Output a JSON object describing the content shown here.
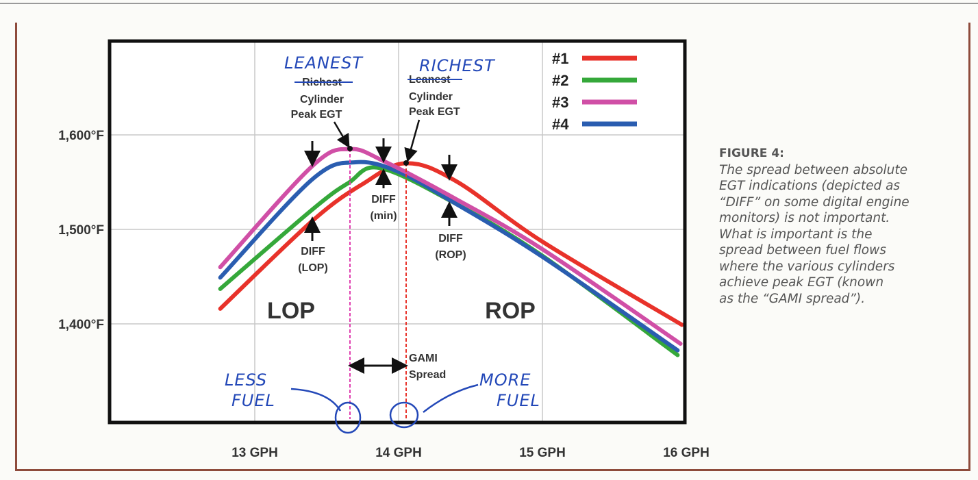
{
  "chart_data": {
    "type": "line",
    "xlim": [
      12,
      16
    ],
    "ylim": [
      1296,
      1699
    ],
    "grid": true,
    "legend_placement": "top-right",
    "x_ticks": [
      {
        "v": 13,
        "label": "13 GPH"
      },
      {
        "v": 14,
        "label": "14 GPH"
      },
      {
        "v": 15,
        "label": "15 GPH"
      },
      {
        "v": 16,
        "label": "16 GPH"
      }
    ],
    "y_ticks": [
      {
        "v": 1600,
        "label": "1,600°F"
      },
      {
        "v": 1500,
        "label": "1,500°F"
      },
      {
        "v": 1400,
        "label": "1,400°F"
      }
    ],
    "series": [
      {
        "name": "#1",
        "color": "#e8322a",
        "points": [
          [
            12.76,
            1416
          ],
          [
            13.4,
            1509
          ],
          [
            13.75,
            1548
          ],
          [
            14.05,
            1570
          ],
          [
            14.4,
            1551
          ],
          [
            15,
            1487
          ],
          [
            15.97,
            1399
          ]
        ]
      },
      {
        "name": "#2",
        "color": "#35a83a",
        "points": [
          [
            12.76,
            1437
          ],
          [
            13.4,
            1521
          ],
          [
            13.65,
            1549
          ],
          [
            13.87,
            1565
          ],
          [
            14.4,
            1527
          ],
          [
            15,
            1472
          ],
          [
            15.94,
            1367
          ]
        ]
      },
      {
        "name": "#3",
        "color": "#d04fa6",
        "points": [
          [
            12.76,
            1460
          ],
          [
            13.4,
            1567
          ],
          [
            13.66,
            1585
          ],
          [
            13.9,
            1572
          ],
          [
            14.4,
            1532
          ],
          [
            15,
            1479
          ],
          [
            15.96,
            1379
          ]
        ]
      },
      {
        "name": "#4",
        "color": "#2a5db0",
        "points": [
          [
            12.76,
            1449
          ],
          [
            13.4,
            1553
          ],
          [
            13.7,
            1571
          ],
          [
            14,
            1561
          ],
          [
            14.4,
            1527
          ],
          [
            15,
            1471
          ],
          [
            15.94,
            1372
          ]
        ]
      }
    ],
    "annotations": {
      "left_peak": {
        "handwritten": "LEANEST",
        "struck": "Richest",
        "line1": "Cylinder",
        "line2": "Peak EGT",
        "x": 13.66,
        "color": "#e040b0"
      },
      "right_peak": {
        "handwritten": "RICHEST",
        "struck": "Leanest",
        "line1": "Cylinder",
        "line2": "Peak EGT",
        "x": 14.05,
        "color": "#e8322a"
      },
      "diff_lop": [
        "DIFF",
        "(LOP)"
      ],
      "diff_min": [
        "DIFF",
        "(min)"
      ],
      "diff_rop": [
        "DIFF",
        "(ROP)"
      ],
      "lop": "LOP",
      "rop": "ROP",
      "gami": [
        "GAMI",
        "Spread"
      ],
      "less_fuel": [
        "LESS",
        "FUEL"
      ],
      "more_fuel": [
        "MORE",
        "FUEL"
      ]
    }
  },
  "caption": {
    "heading": "FIGURE 4:",
    "lines": [
      "The spread between absolute",
      "EGT indications (depicted as",
      "“DIFF” on some digital engine",
      "monitors) is not important.",
      "What is important is the",
      "spread between fuel flows",
      "where the various cylinders",
      "achieve peak EGT (known",
      "as the “GAMI spread”)."
    ]
  },
  "colors": {
    "frame": "#8e4b3c",
    "handwriting": "#2348b8"
  }
}
